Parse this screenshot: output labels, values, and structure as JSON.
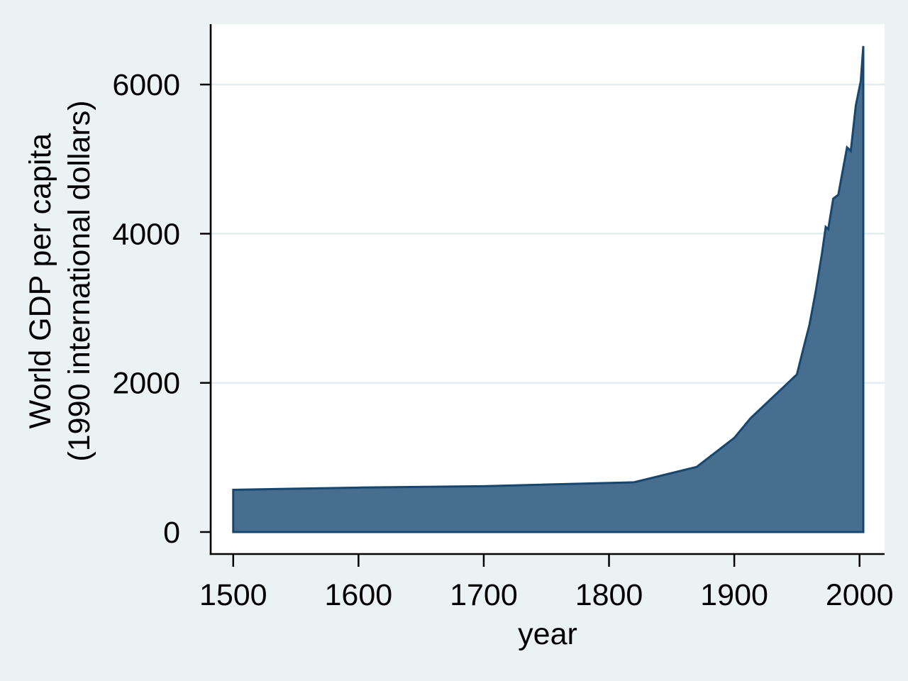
{
  "figure": {
    "page_background": "#EAF2F3",
    "plot_background": "#FFFFFF",
    "gridline_color": "#E2EDEF",
    "axis_color": "#000000",
    "text_color": "#000000"
  },
  "chart_data": {
    "type": "area",
    "title": "",
    "xlabel": "year",
    "ylabel_lines": [
      "World GDP per capita",
      "(1990 international dollars)"
    ],
    "x_ticks": [
      1500,
      1600,
      1700,
      1800,
      1900,
      2000
    ],
    "y_ticks": [
      0,
      2000,
      4000,
      6000
    ],
    "gridlines_at": [
      2000,
      4000,
      6000
    ],
    "xlim": [
      1482,
      2020
    ],
    "ylim": [
      -295,
      6810
    ],
    "grid": "horizontal",
    "legend_position": "none",
    "series": [
      {
        "name": "World GDP per capita (1990 international dollars)",
        "fill_color": "#476D8F",
        "line_color": "#17466F",
        "line_width": 3,
        "baseline": 0,
        "points": [
          [
            1500,
            566
          ],
          [
            1600,
            596
          ],
          [
            1700,
            615
          ],
          [
            1820,
            667
          ],
          [
            1870,
            873
          ],
          [
            1900,
            1262
          ],
          [
            1913,
            1526
          ],
          [
            1950,
            2113
          ],
          [
            1955,
            2450
          ],
          [
            1960,
            2777
          ],
          [
            1965,
            3225
          ],
          [
            1970,
            3736
          ],
          [
            1973,
            4091
          ],
          [
            1975,
            4060
          ],
          [
            1979,
            4470
          ],
          [
            1983,
            4520
          ],
          [
            1990,
            5157
          ],
          [
            1993,
            5110
          ],
          [
            1997,
            5715
          ],
          [
            2001,
            6049
          ],
          [
            2003,
            6516
          ]
        ]
      }
    ]
  }
}
